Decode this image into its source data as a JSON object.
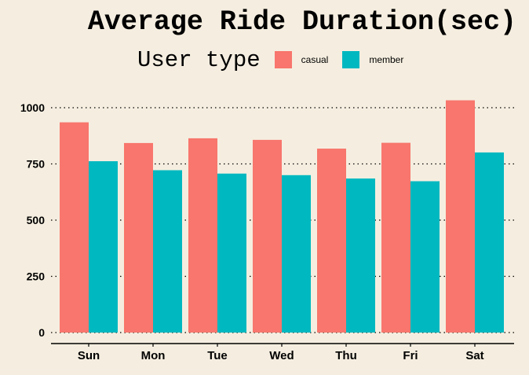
{
  "chart_data": {
    "type": "bar",
    "title": "Average Ride Duration(sec)",
    "legend_title": "User type",
    "legend_position": "top",
    "categories": [
      "Sun",
      "Mon",
      "Tue",
      "Wed",
      "Thu",
      "Fri",
      "Sat"
    ],
    "series": [
      {
        "name": "casual",
        "color": "#f8766d",
        "values": [
          935,
          843,
          864,
          857,
          818,
          844,
          1033
        ]
      },
      {
        "name": "member",
        "color": "#00b8c0",
        "values": [
          762,
          722,
          707,
          700,
          685,
          673,
          801
        ]
      }
    ],
    "y_ticks": [
      "0",
      "250",
      "500",
      "750",
      "1000"
    ],
    "ylim": [
      0,
      1050
    ],
    "grid": "horizontal dotted"
  }
}
